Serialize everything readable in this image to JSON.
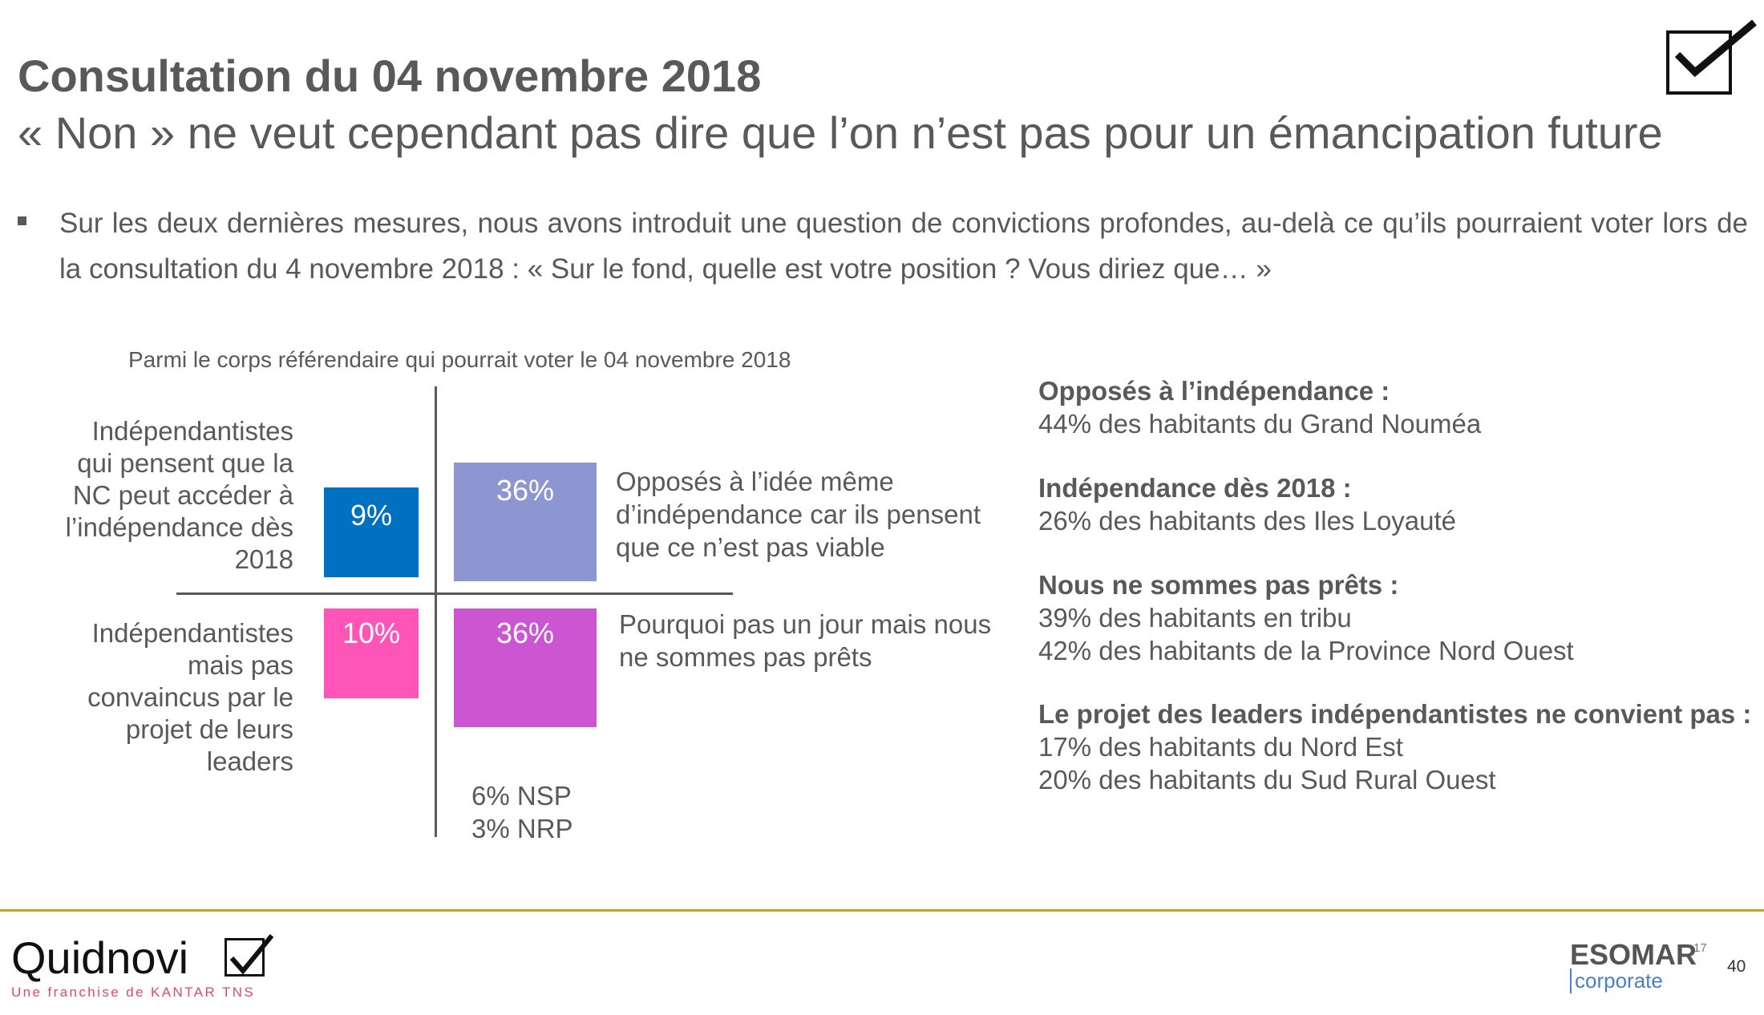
{
  "header": {
    "title": "Consultation du 04 novembre 2018",
    "subtitle": "« Non » ne veut cependant pas dire que l’on n’est pas pour un émancipation future"
  },
  "intro": {
    "bullet": "Sur les deux dernières mesures, nous avons introduit une question de convictions profondes, au-delà ce qu’ils pourraient voter lors de la consultation du 4 novembre 2018 : « Sur le fond, quelle est votre position ? Vous diriez que… »"
  },
  "chart_data": {
    "type": "table",
    "caption": "Parmi le corps référendaire qui pourrait voter le 04 novembre 2018",
    "colors": {
      "blue": "#0070c0",
      "lavender": "#8d96d0",
      "pink": "#ff55b8",
      "purple": "#cc55d2"
    },
    "left_labels": [
      {
        "lines": [
          "Indépendantistes",
          "qui pensent que la",
          "NC peut accéder à",
          "l’indépendance dès",
          "2018"
        ]
      },
      {
        "lines": [
          "Indépendantistes",
          "mais pas",
          "convaincus par le",
          "projet de leurs",
          "leaders"
        ]
      }
    ],
    "right_labels": [
      {
        "lines": [
          "Opposés à l’idée même",
          "d’indépendance car ils pensent",
          "que ce n’est pas viable"
        ]
      },
      {
        "lines": [
          "Pourquoi pas un jour mais nous",
          "ne sommes pas prêts"
        ]
      }
    ],
    "cells": [
      {
        "label": "9%",
        "value": 9
      },
      {
        "label": "36%",
        "value": 36
      },
      {
        "label": "10%",
        "value": 10
      },
      {
        "label": "36%",
        "value": 36
      }
    ],
    "other": [
      "6% NSP",
      "3% NRP"
    ]
  },
  "side": {
    "groups": [
      {
        "title": "Opposés à l’indépendance :",
        "lines": [
          "44% des habitants du Grand Nouméa"
        ]
      },
      {
        "title": "Indépendance dès 2018 :",
        "lines": [
          "26% des habitants des Iles Loyauté"
        ]
      },
      {
        "title": "Nous ne sommes pas prêts :",
        "lines": [
          "39% des habitants en tribu",
          "42% des habitants de la Province Nord Ouest"
        ]
      },
      {
        "title": "Le projet des leaders indépendantistes ne convient pas :",
        "lines": [
          "17% des habitants du Nord Est",
          "20% des habitants du Sud Rural Ouest"
        ]
      }
    ]
  },
  "footer": {
    "logo": "Quidnovi",
    "logo_sub": "Une franchise de KANTAR TNS",
    "esomar": "ESOMAR",
    "esomar_sup": "17",
    "esomar_sub": "corporate",
    "page": "40"
  }
}
